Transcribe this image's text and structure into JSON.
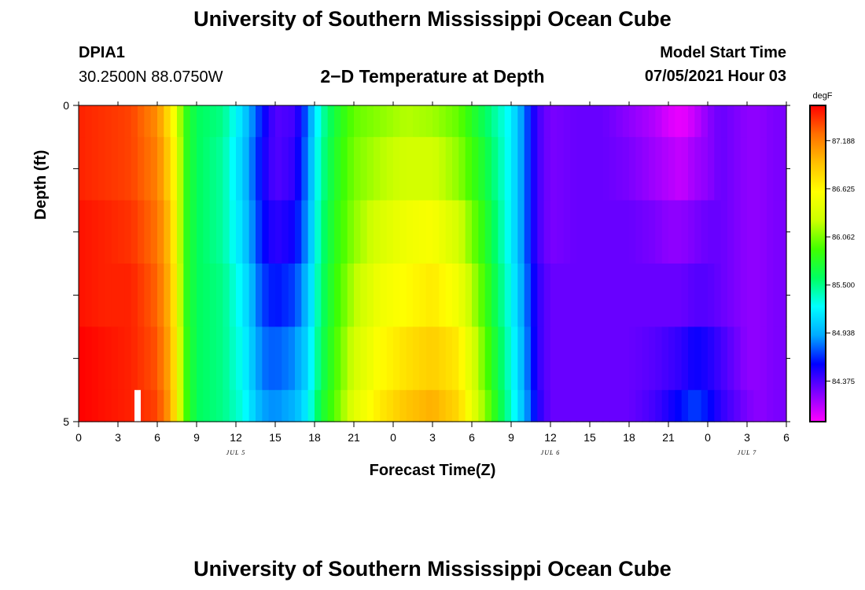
{
  "header": {
    "title": "University of Southern Mississippi Ocean Cube",
    "station": "DPIA1",
    "coords": "30.2500N  88.0750W",
    "plot_title": "2−D Temperature at Depth",
    "start_label": "Model Start Time",
    "start_value": "07/05/2021 Hour 03"
  },
  "footer": {
    "title": "University of Southern Mississippi Ocean Cube"
  },
  "chart_data": {
    "type": "heatmap",
    "title": "2−D Temperature at Depth",
    "xlabel": "Forecast Time(Z)",
    "ylabel": "Depth (ft)",
    "x_tick_labels": [
      "0",
      "3",
      "6",
      "9",
      "12",
      "15",
      "18",
      "21",
      "0",
      "3",
      "6",
      "9",
      "12",
      "15",
      "18",
      "21",
      "0",
      "3",
      "6"
    ],
    "x_range_hours": [
      0,
      54
    ],
    "date_labels": [
      {
        "text": "JUL 5",
        "hour": 12
      },
      {
        "text": "JUL 6",
        "hour": 36
      },
      {
        "text": "JUL 7",
        "hour": 51
      }
    ],
    "y_tick_labels": [
      "0",
      "5"
    ],
    "ylim": [
      0,
      5
    ],
    "colorbar": {
      "unit": "degF",
      "min": 83.9,
      "max": 87.6,
      "ticks": [
        "87.188",
        "86.625",
        "86.062",
        "85.500",
        "84.938",
        "84.375"
      ],
      "tick_values": [
        87.188,
        86.625,
        86.062,
        85.5,
        84.938,
        84.375
      ],
      "palette": [
        "#ff00ff",
        "#8000ff",
        "#0000ff",
        "#00aaff",
        "#00ffff",
        "#00ff60",
        "#40ff00",
        "#ccff00",
        "#ffff00",
        "#ffc000",
        "#ff7000",
        "#ff0000"
      ]
    },
    "marker": {
      "hour": 4.5,
      "depth_from": 4.5,
      "depth_to": 5
    },
    "depth_bands": [
      0,
      0.5,
      1.5,
      2.5,
      3.5,
      4.5,
      5
    ],
    "series": [
      {
        "name": "surface",
        "hours": [
          0,
          2,
          4,
          6,
          7,
          7.5,
          8,
          9,
          11,
          12.5,
          14,
          15,
          16.5,
          17.5,
          18.5,
          19.5,
          21,
          23,
          25,
          27,
          29,
          31,
          33,
          34,
          35,
          36,
          38,
          40,
          42,
          44,
          45,
          46,
          47,
          48,
          49,
          50,
          51,
          52,
          53,
          54
        ],
        "values": [
          87.5,
          87.45,
          87.4,
          87.15,
          86.7,
          86.4,
          85.9,
          85.6,
          85.5,
          85.1,
          84.6,
          84.35,
          84.4,
          84.8,
          85.4,
          85.7,
          86.0,
          86.1,
          86.2,
          86.15,
          86.0,
          85.6,
          85.2,
          84.8,
          84.4,
          84.25,
          84.3,
          84.3,
          84.2,
          84.1,
          84.0,
          83.95,
          84.05,
          84.2,
          84.3,
          84.25,
          84.2,
          84.2,
          84.25,
          84.25
        ]
      },
      {
        "name": "1ft",
        "hours": [
          0,
          2,
          4,
          6,
          7,
          7.5,
          8,
          9,
          11,
          12.5,
          14,
          15,
          16.5,
          17.5,
          18.5,
          19.5,
          21,
          23,
          25,
          27,
          29,
          31,
          33,
          34,
          35,
          36,
          38,
          40,
          42,
          44,
          45,
          46,
          47,
          48,
          49,
          50,
          51,
          52,
          53,
          54
        ],
        "values": [
          87.5,
          87.45,
          87.4,
          87.2,
          86.8,
          86.5,
          85.9,
          85.6,
          85.45,
          85.05,
          84.55,
          84.35,
          84.45,
          84.85,
          85.45,
          85.75,
          86.05,
          86.2,
          86.3,
          86.3,
          86.1,
          85.7,
          85.2,
          84.8,
          84.4,
          84.25,
          84.3,
          84.3,
          84.25,
          84.15,
          84.1,
          84.05,
          84.15,
          84.2,
          84.3,
          84.25,
          84.2,
          84.2,
          84.25,
          84.25
        ]
      },
      {
        "name": "2ft",
        "hours": [
          0,
          2,
          4,
          6,
          7,
          7.5,
          8,
          9,
          11,
          12.5,
          14,
          15,
          16.5,
          17.5,
          18.5,
          19.5,
          21,
          23,
          25,
          27,
          29,
          31,
          33,
          34,
          35,
          36,
          38,
          40,
          42,
          44,
          45,
          46,
          47,
          48,
          49,
          50,
          51,
          52,
          53,
          54
        ],
        "values": [
          87.55,
          87.5,
          87.45,
          87.25,
          86.9,
          86.5,
          85.9,
          85.6,
          85.45,
          85.1,
          84.6,
          84.45,
          84.55,
          84.9,
          85.5,
          85.8,
          86.1,
          86.35,
          86.5,
          86.55,
          86.3,
          85.8,
          85.2,
          84.8,
          84.4,
          84.25,
          84.3,
          84.3,
          84.3,
          84.25,
          84.2,
          84.2,
          84.25,
          84.3,
          84.3,
          84.25,
          84.2,
          84.2,
          84.25,
          84.25
        ]
      },
      {
        "name": "3ft",
        "hours": [
          0,
          2,
          4,
          6,
          7,
          7.5,
          8,
          9,
          11,
          12.5,
          14,
          15,
          16.5,
          17.5,
          18.5,
          19.5,
          21,
          23,
          25,
          27,
          29,
          31,
          33,
          34,
          35,
          36,
          38,
          40,
          42,
          44,
          45,
          46,
          47,
          48,
          49,
          50,
          51,
          52,
          53,
          54
        ],
        "values": [
          87.55,
          87.5,
          87.5,
          87.3,
          86.95,
          86.55,
          85.9,
          85.6,
          85.5,
          85.2,
          84.7,
          84.6,
          84.7,
          85.0,
          85.55,
          85.85,
          86.2,
          86.5,
          86.6,
          86.7,
          86.5,
          85.9,
          85.25,
          84.85,
          84.45,
          84.3,
          84.3,
          84.3,
          84.3,
          84.3,
          84.3,
          84.3,
          84.35,
          84.35,
          84.3,
          84.25,
          84.2,
          84.2,
          84.25,
          84.25
        ]
      },
      {
        "name": "4ft",
        "hours": [
          0,
          2,
          4,
          6,
          7,
          7.5,
          8,
          9,
          11,
          12.5,
          14,
          15,
          16.5,
          17.5,
          18.5,
          19.5,
          21,
          23,
          25,
          27,
          29,
          31,
          33,
          34,
          35,
          36,
          38,
          40,
          42,
          44,
          45,
          46,
          47,
          48,
          49,
          50,
          51,
          52,
          53,
          54
        ],
        "values": [
          87.6,
          87.55,
          87.5,
          87.35,
          87.0,
          86.6,
          85.95,
          85.6,
          85.5,
          85.25,
          84.8,
          84.75,
          84.85,
          85.1,
          85.6,
          85.9,
          86.3,
          86.6,
          86.75,
          86.85,
          86.7,
          86.0,
          85.3,
          84.9,
          84.45,
          84.3,
          84.3,
          84.3,
          84.3,
          84.35,
          84.4,
          84.45,
          84.55,
          84.5,
          84.4,
          84.3,
          84.2,
          84.2,
          84.25,
          84.25
        ]
      },
      {
        "name": "5ft",
        "hours": [
          0,
          2,
          4,
          6,
          7,
          7.5,
          8,
          9,
          11,
          12.5,
          14,
          15,
          16.5,
          17.5,
          18.5,
          19.5,
          21,
          23,
          25,
          27,
          29,
          31,
          33,
          34,
          35,
          36,
          38,
          40,
          42,
          44,
          45,
          46,
          47,
          48,
          49,
          50,
          51,
          52,
          53,
          54
        ],
        "values": [
          87.6,
          87.55,
          87.5,
          87.4,
          87.05,
          86.6,
          86.0,
          85.6,
          85.5,
          85.3,
          84.9,
          84.85,
          84.95,
          85.2,
          85.7,
          85.95,
          86.4,
          86.7,
          86.9,
          87.0,
          86.8,
          86.1,
          85.35,
          84.95,
          84.5,
          84.3,
          84.3,
          84.3,
          84.3,
          84.4,
          84.5,
          84.6,
          84.7,
          84.6,
          84.45,
          84.35,
          84.25,
          84.2,
          84.25,
          84.25
        ]
      }
    ]
  }
}
